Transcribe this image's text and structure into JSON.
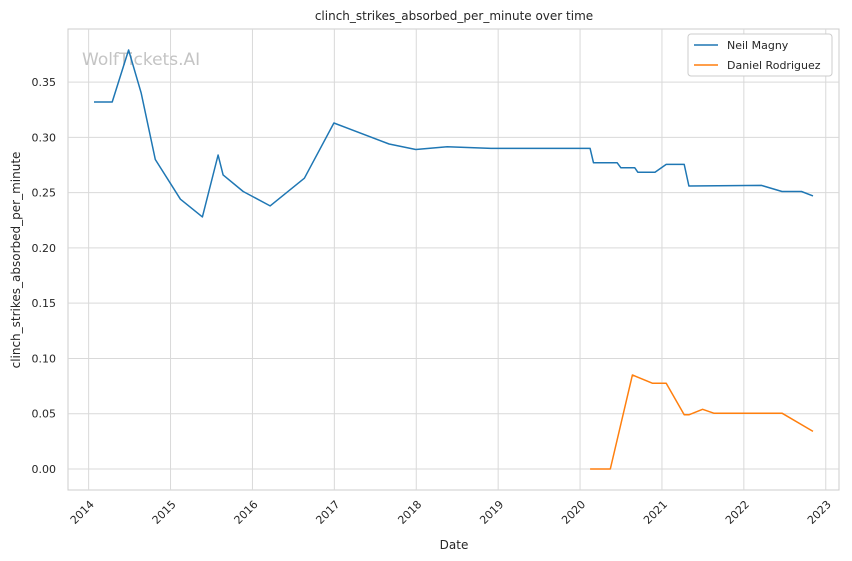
{
  "chart_data": {
    "type": "line",
    "title": "clinch_strikes_absorbed_per_minute over time",
    "xlabel": "Date",
    "ylabel": "clinch_strikes_absorbed_per_minute",
    "watermark": "WolfTickets.AI",
    "xlim": [
      "2013-10-01",
      "2023-03-01"
    ],
    "ylim": [
      -0.019,
      0.398
    ],
    "x_ticks": [
      "2014",
      "2015",
      "2016",
      "2017",
      "2018",
      "2019",
      "2020",
      "2021",
      "2022",
      "2023"
    ],
    "y_ticks": [
      "0.00",
      "0.05",
      "0.10",
      "0.15",
      "0.20",
      "0.25",
      "0.30",
      "0.35"
    ],
    "grid": true,
    "legend_position": "top-right",
    "series": [
      {
        "name": "Neil Magny",
        "color": "#1f77b4",
        "points": [
          [
            "2014-01-25",
            0.332
          ],
          [
            "2014-04-16",
            0.332
          ],
          [
            "2014-06-28",
            0.379
          ],
          [
            "2014-08-23",
            0.34
          ],
          [
            "2014-10-25",
            0.28
          ],
          [
            "2015-02-14",
            0.244
          ],
          [
            "2015-05-23",
            0.228
          ],
          [
            "2015-08-01",
            0.284
          ],
          [
            "2015-08-23",
            0.266
          ],
          [
            "2015-11-21",
            0.251
          ],
          [
            "2016-03-20",
            0.238
          ],
          [
            "2016-08-20",
            0.263
          ],
          [
            "2016-12-30",
            0.313
          ],
          [
            "2017-09-02",
            0.294
          ],
          [
            "2017-12-30",
            0.289
          ],
          [
            "2018-05-19",
            0.2915
          ],
          [
            "2018-11-30",
            0.29
          ],
          [
            "2020-02-15",
            0.29
          ],
          [
            "2020-03-01",
            0.277
          ],
          [
            "2020-06-15",
            0.277
          ],
          [
            "2020-07-01",
            0.2725
          ],
          [
            "2020-09-01",
            0.2725
          ],
          [
            "2020-09-15",
            0.2685
          ],
          [
            "2020-12-01",
            0.2685
          ],
          [
            "2021-01-20",
            0.2755
          ],
          [
            "2021-04-10",
            0.2755
          ],
          [
            "2021-05-01",
            0.256
          ],
          [
            "2022-03-20",
            0.2565
          ],
          [
            "2022-06-20",
            0.251
          ],
          [
            "2022-09-15",
            0.251
          ],
          [
            "2022-11-05",
            0.247
          ]
        ]
      },
      {
        "name": "Daniel Rodriguez",
        "color": "#ff7f0e",
        "points": [
          [
            "2020-02-15",
            0.0
          ],
          [
            "2020-05-15",
            0.0
          ],
          [
            "2020-08-22",
            0.085
          ],
          [
            "2020-11-20",
            0.0775
          ],
          [
            "2021-01-20",
            0.0775
          ],
          [
            "2021-04-10",
            0.049
          ],
          [
            "2021-05-01",
            0.049
          ],
          [
            "2021-07-01",
            0.054
          ],
          [
            "2021-08-20",
            0.0505
          ],
          [
            "2022-06-20",
            0.0505
          ],
          [
            "2022-11-05",
            0.034
          ]
        ]
      }
    ]
  }
}
